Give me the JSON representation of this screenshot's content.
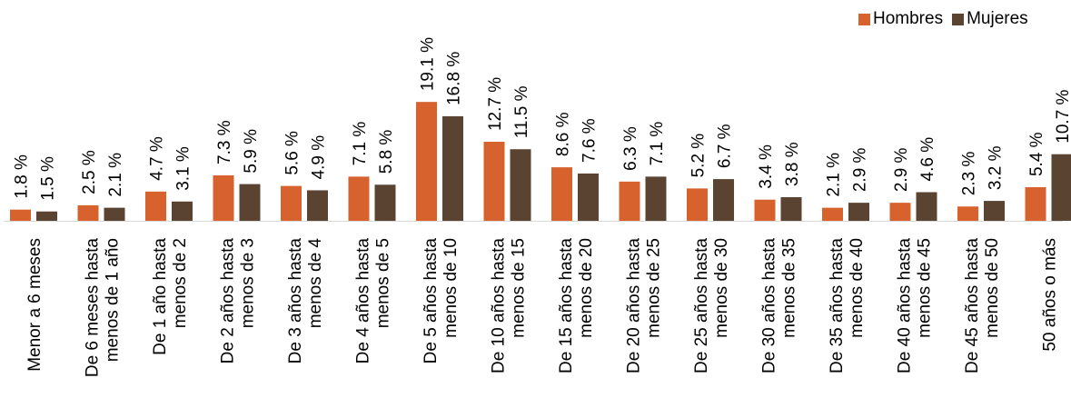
{
  "chart_data": {
    "type": "bar",
    "categories": [
      [
        "Menor a 6 meses"
      ],
      [
        "De 6 meses hasta",
        "menos de 1 año"
      ],
      [
        "De 1 año hasta",
        "menos de 2"
      ],
      [
        "De 2 años hasta",
        "menos de 3"
      ],
      [
        "De 3 años hasta",
        "menos de 4"
      ],
      [
        "De 4 años hasta",
        "menos de 5"
      ],
      [
        "De 5 años hasta",
        "menos de 10"
      ],
      [
        "De 10 años hasta",
        "menos de 15"
      ],
      [
        "De 15 años hasta",
        "menos de 20"
      ],
      [
        "De 20 años hasta",
        "menos de 25"
      ],
      [
        "De 25 años hasta",
        "menos de 30"
      ],
      [
        "De 30 años hasta",
        "menos de 35"
      ],
      [
        "De 35 años hasta",
        "menos de 40"
      ],
      [
        "De 40 años hasta",
        "menos de 45"
      ],
      [
        "De 45 años hasta",
        "menos de 50"
      ],
      [
        "50 años o más"
      ]
    ],
    "series": [
      {
        "name": "Hombres",
        "color": "#D8622E",
        "values": [
          1.8,
          2.5,
          4.7,
          7.3,
          5.6,
          7.1,
          19.1,
          12.7,
          8.6,
          6.3,
          5.2,
          3.4,
          2.1,
          2.9,
          2.3,
          5.4
        ],
        "labels": [
          "1.8 %",
          "2.5 %",
          "4.7 %",
          "7.3 %",
          "5.6 %",
          "7.1 %",
          "19.1 %",
          "12.7 %",
          "8.6 %",
          "6.3 %",
          "5.2 %",
          "3.4 %",
          "2.1 %",
          "2.9 %",
          "2.3 %",
          "5.4 %"
        ]
      },
      {
        "name": "Mujeres",
        "color": "#5B4331",
        "values": [
          1.5,
          2.1,
          3.1,
          5.9,
          4.9,
          5.8,
          16.8,
          11.5,
          7.6,
          7.1,
          6.7,
          3.8,
          2.9,
          4.6,
          3.2,
          10.7
        ],
        "labels": [
          "1.5 %",
          "2.1 %",
          "3.1 %",
          "5.9 %",
          "4.9 %",
          "5.8 %",
          "16.8 %",
          "11.5 %",
          "7.6 %",
          "7.1 %",
          "6.7 %",
          "3.8 %",
          "2.9 %",
          "4.6 %",
          "3.2 %",
          "10.7 %"
        ]
      }
    ],
    "legend_position": "top-right",
    "grid": false,
    "ylim": [
      0,
      20
    ]
  }
}
